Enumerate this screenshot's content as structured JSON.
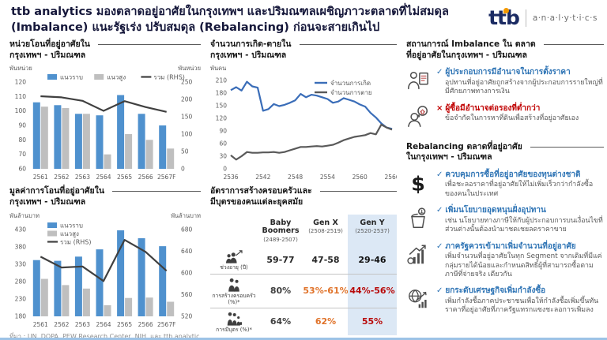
{
  "header": {
    "title_line1": "ttb analytics มองตลาดอยู่อาศัยในกรุงเทพฯ และปริมณฑลเผชิญภาวะตลาดที่ไม่สมดุล",
    "title_line2": "(Imbalance) แนะรัฐเร่ง ปรับสมดุล (Rebalancing) ก่อนจะสายเกินไป",
    "logo": {
      "brand": "ttb",
      "suffix": "a·n·a·l·y·t·i·c·s",
      "brand_color": "#1b2b63",
      "accent_color": "#f49a00"
    }
  },
  "colors": {
    "bar_blue": "#4f91ce",
    "bar_gray": "#bfbfbf",
    "line_dark": "#404040",
    "births_blue": "#3a6db8",
    "deaths_gray": "#595959",
    "heading_blue": "#2e74b5",
    "alert_red": "#c00000",
    "warn_orange": "#e0732a",
    "highlight": "#dce8f5",
    "bottom_bar": "#9dc3e6"
  },
  "chart_data": [
    {
      "type": "bar+line",
      "name": "transfer-units-chart",
      "title_line1": "หน่วยโอนที่อยู่อาศัยใน",
      "title_line2": "กรุงเทพฯ - ปริมณฑล",
      "left_unit": "พันหน่วย",
      "right_unit": "พันหน่วย",
      "categories": [
        "2561",
        "2562",
        "2563",
        "2564",
        "2565",
        "2566",
        "2567F"
      ],
      "bar_series": [
        {
          "name": "แนวราบ",
          "color": "#4f91ce",
          "values": [
            106,
            104,
            98,
            97,
            111,
            98,
            90
          ]
        },
        {
          "name": "แนวสูง",
          "color": "#bfbfbf",
          "values": [
            103,
            102,
            98,
            70,
            84,
            80,
            74
          ]
        }
      ],
      "line_series": [
        {
          "name": "รวม (RHS)",
          "color": "#404040",
          "axis": "right",
          "values": [
            209,
            206,
            196,
            167,
            195,
            178,
            164
          ]
        }
      ],
      "left_axis": {
        "min": 60,
        "max": 120,
        "step": 10
      },
      "right_axis": {
        "min": 0,
        "max": 250,
        "step": 50
      },
      "legend": "horizontal"
    },
    {
      "type": "bar+line",
      "name": "transfer-value-chart",
      "title_line1": "มูลค่าการโอนที่อยู่อาศัยใน",
      "title_line2": "กรุงเทพฯ - ปริมณฑล",
      "left_unit": "พันล้านบาท",
      "right_unit": "พันล้านบาท",
      "categories": [
        "2561",
        "2562",
        "2563",
        "2564",
        "2565",
        "2566",
        "2567F"
      ],
      "bar_series": [
        {
          "name": "แนวราบ",
          "color": "#4f91ce",
          "values": [
            342,
            340,
            352,
            373,
            428,
            405,
            382
          ]
        },
        {
          "name": "แนวสูง",
          "color": "#bfbfbf",
          "values": [
            288,
            270,
            260,
            212,
            233,
            234,
            222
          ]
        }
      ],
      "line_series": [
        {
          "name": "รวม (RHS)",
          "color": "#404040",
          "axis": "right",
          "values": [
            630,
            610,
            612,
            585,
            661,
            639,
            604
          ]
        }
      ],
      "left_axis": {
        "min": 180,
        "max": 430,
        "step": 50
      },
      "right_axis": {
        "min": 520,
        "max": 680,
        "step": 40
      },
      "legend": "vertical"
    },
    {
      "type": "line",
      "name": "births-deaths-chart",
      "title_line1": "จำนวนการเกิด-ตายใน",
      "title_line2": "กรุงเทพฯ - ปริมณฑล",
      "left_unit": "พันคน",
      "x_start": 2536,
      "x_ticks": [
        2536,
        2542,
        2548,
        2554,
        2560,
        2566
      ],
      "series": [
        {
          "name": "จำนวนการเกิด",
          "color": "#3a6db8",
          "values": [
            187,
            194,
            186,
            207,
            196,
            193,
            138,
            142,
            154,
            149,
            152,
            157,
            163,
            178,
            170,
            176,
            174,
            170,
            166,
            157,
            160,
            168,
            164,
            160,
            153,
            148,
            133,
            122,
            108,
            98,
            95
          ]
        },
        {
          "name": "จำนวนการตาย",
          "color": "#595959",
          "values": [
            32,
            22,
            30,
            40,
            38,
            38,
            39,
            39,
            40,
            38,
            40,
            44,
            48,
            52,
            52,
            53,
            54,
            53,
            55,
            57,
            62,
            68,
            72,
            76,
            78,
            80,
            85,
            82,
            105,
            98,
            93
          ]
        }
      ],
      "left_axis": {
        "min": 0,
        "max": 210,
        "step": 30
      }
    },
    {
      "type": "table",
      "name": "generation-table",
      "title_line1": "อัตราการสร้างครอบครัวและ",
      "title_line2": "มีบุตรของคนแต่ละยุคสมัย",
      "highlight_color": "#dce8f5",
      "columns": [
        {
          "label": "Baby Boomers",
          "sub": "(2489-2507)",
          "highlight": false
        },
        {
          "label": "Gen X",
          "sub": "(2508-2519)",
          "highlight": false
        },
        {
          "label": "Gen Y",
          "sub": "(2520-2537)",
          "highlight": true
        }
      ],
      "rows": [
        {
          "label": "ช่วงอายุ (ปี)",
          "icon": "age-range-icon",
          "values": [
            {
              "text": "59-77",
              "color": "#262626"
            },
            {
              "text": "47-58",
              "color": "#262626"
            },
            {
              "text": "29-46",
              "color": "#111111"
            }
          ]
        },
        {
          "label": "การสร้างครอบครัว (%)*",
          "icon": "family-formation-icon",
          "values": [
            {
              "text": "80%",
              "color": "#404040"
            },
            {
              "text": "53%-61%",
              "color": "#e0732a"
            },
            {
              "text": "44%-56%",
              "color": "#b80a0a"
            }
          ]
        },
        {
          "label": "การมีบุตร (%)*",
          "icon": "children-icon",
          "values": [
            {
              "text": "64%",
              "color": "#404040"
            },
            {
              "text": "62%",
              "color": "#e0732a"
            },
            {
              "text": "55%",
              "color": "#b80a0a"
            }
          ]
        }
      ]
    }
  ],
  "right_panel": {
    "sections": [
      {
        "title_line1": "สถานการณ์ Imbalance ใน ตลาด",
        "title_line2": "ที่อยู่อาศัยในกรุงเทพฯ - ปริมณฑล",
        "items": [
          {
            "icon": "developer-document-icon",
            "mark": "✓",
            "color": "#2e74b5",
            "title": "ผู้ประกอบการมีอำนาจในการตั้งราคา",
            "desc": "อุปทานที่อยู่อาศัยถูกสร้างจากผู้ประกอบการรายใหญ่ที่มีศักยภาพทางการเงิน"
          },
          {
            "icon": "buyer-thought-icon",
            "mark": "×",
            "color": "#c00000",
            "title": "ผู้ซื้อมีอำนาจต่อรองที่ต่ำกว่า",
            "desc": "ข้อจำกัดในการหาที่ดินเพื่อสร้างที่อยู่อาศัยเอง"
          }
        ]
      },
      {
        "title_line1": "Rebalancing ตลาดที่อยู่อาศัย",
        "title_line2": "ในกรุงเทพฯ - ปริมณฑล",
        "items": [
          {
            "icon": "dollar-icon",
            "mark": "✓",
            "color": "#2e74b5",
            "title": "ควบคุมการซื้อที่อยู่อาศัยของทุนต่างชาติ",
            "desc": "เพื่อชะลอราคาที่อยู่อาศัยให้ไม่เพิ่มเร็วกว่ากำลังซื้อของคนในประเทศ"
          },
          {
            "icon": "subsidy-bucket-icon",
            "mark": "✓",
            "color": "#2e74b5",
            "title": "เพิ่มนโยบายอุดหนุนฝั่งอุปทาน",
            "desc": "เช่น นโยบายทางภาษีให้กับผู้ประกอบการบนเงื่อนไขที่ส่วนต่างนั้นต้องนำมาชดเชยลดราคาขาย"
          },
          {
            "icon": "housing-supply-chart-icon",
            "mark": "✓",
            "color": "#2e74b5",
            "title": "ภาครัฐควรเข้ามาเพิ่มจำนวนที่อยู่อาศัย",
            "desc": "เพิ่มจำนวนที่อยู่อาศัยในทุก Segment จากเดิมที่มีแค่กลุ่มรายได้น้อยและกำหนดสิทธิ์ผู้ที่สามารถซื้อตามภาษีที่จ่ายจริง เดียวกัน"
          },
          {
            "icon": "economy-growth-icon",
            "mark": "✓",
            "color": "#2e74b5",
            "title": "ยกระดับเศรษฐกิจเพิ่มกำลังซื้อ",
            "desc": "เพิ่มกำลังซื้อภาคประชาชนเพื่อให้กำลังซื้อเพิ่มขึ้นทันราคาที่อยู่อาศัยที่ภาครัฐแทรกแซงชะลอการเพิ่มลง"
          }
        ]
      }
    ]
  },
  "footer": {
    "source": "ที่มา : UN, DOPA, PEW Research Center, NIH, และ ttb analytic"
  }
}
